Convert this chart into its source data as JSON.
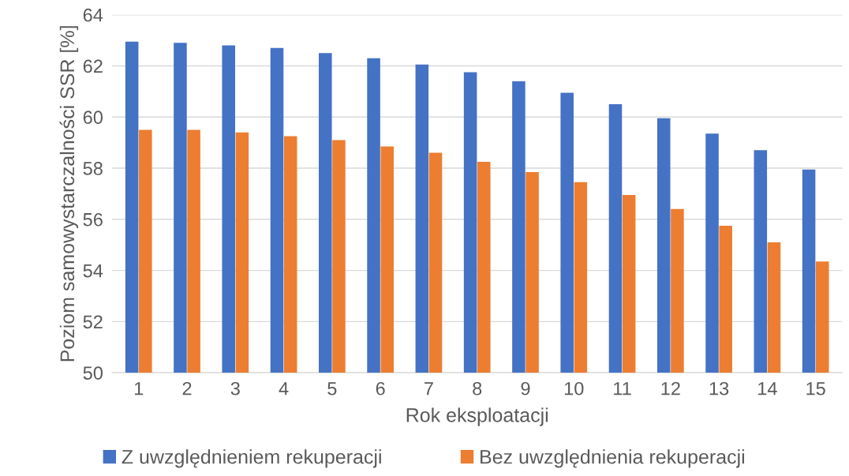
{
  "chart_data": {
    "type": "bar",
    "xlabel": "Rok eksploatacji",
    "ylabel": "Poziom samowystarczalności SSR [%]",
    "categories": [
      "1",
      "2",
      "3",
      "4",
      "5",
      "6",
      "7",
      "8",
      "9",
      "10",
      "11",
      "12",
      "13",
      "14",
      "15"
    ],
    "series": [
      {
        "name": "Z uwzględnieniem rekuperacji",
        "color": "#4472c4",
        "values": [
          62.95,
          62.9,
          62.8,
          62.7,
          62.5,
          62.3,
          62.05,
          61.75,
          61.4,
          60.95,
          60.5,
          59.95,
          59.35,
          58.7,
          57.95
        ]
      },
      {
        "name": "Bez uwzględnienia rekuperacji",
        "color": "#ed7d31",
        "values": [
          59.5,
          59.5,
          59.4,
          59.25,
          59.1,
          58.85,
          58.6,
          58.25,
          57.85,
          57.45,
          56.95,
          56.4,
          55.75,
          55.1,
          54.35
        ]
      }
    ],
    "ylim": [
      50,
      64
    ],
    "yticks": [
      50,
      52,
      54,
      56,
      58,
      60,
      62,
      64
    ],
    "grid": "y",
    "legend": "bottom"
  }
}
